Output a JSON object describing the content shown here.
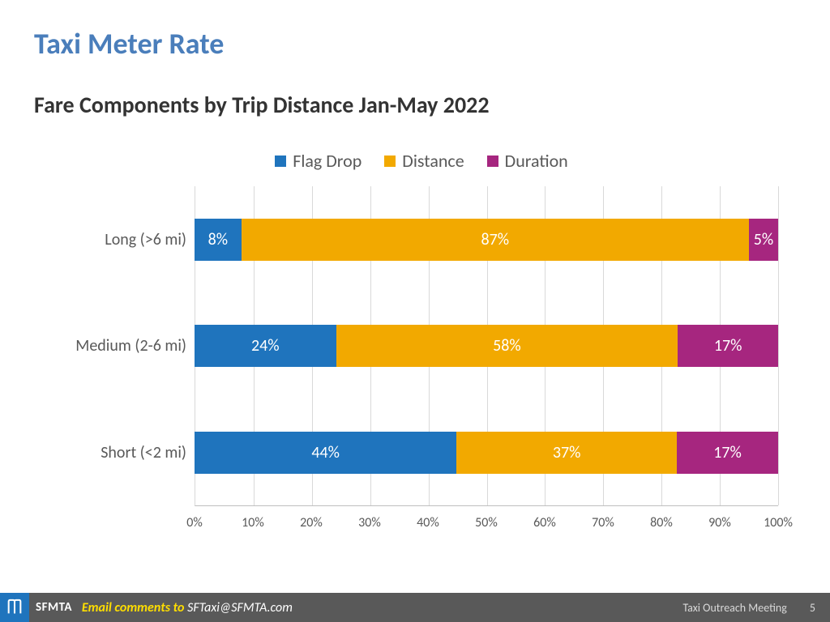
{
  "title": {
    "text": "Taxi Meter Rate",
    "color": "#4a7ebb",
    "fontsize": 36
  },
  "subtitle": {
    "text": "Fare Components by Trip Distance Jan-May 2022",
    "fontsize": 28
  },
  "chart": {
    "type": "stacked-bar-horizontal-100pct",
    "legend_fontsize": 22,
    "label_fontsize": 20,
    "axis_fontsize": 16,
    "background_color": "#ffffff",
    "grid_color": "#d9d9d9",
    "text_color": "#595959",
    "series": [
      {
        "name": "Flag Drop",
        "color": "#1f74bd"
      },
      {
        "name": "Distance",
        "color": "#f2a900"
      },
      {
        "name": "Duration",
        "color": "#a6267f"
      }
    ],
    "categories": [
      "Long (>6 mi)",
      "Medium (2-6 mi)",
      "Short (<2 mi)"
    ],
    "values": [
      [
        8,
        87,
        5
      ],
      [
        24,
        58,
        17
      ],
      [
        44,
        37,
        17
      ]
    ],
    "value_suffix": "%",
    "xlim": [
      0,
      100
    ],
    "xtick_step": 10,
    "xtick_labels": [
      "0%",
      "10%",
      "20%",
      "30%",
      "40%",
      "50%",
      "60%",
      "70%",
      "80%",
      "90%",
      "100%"
    ],
    "bar_label_color": "#ffffff"
  },
  "footer": {
    "bg_color": "#595959",
    "logo_bg": "#1f74bd",
    "brand": "SFMTA",
    "email_label": "Email comments to ",
    "email_label_color": "#ffde00",
    "email_address": "SFTaxi@SFMTA.com",
    "email_address_color": "#ffffff",
    "meeting": "Taxi Outreach Meeting",
    "page": "5"
  }
}
